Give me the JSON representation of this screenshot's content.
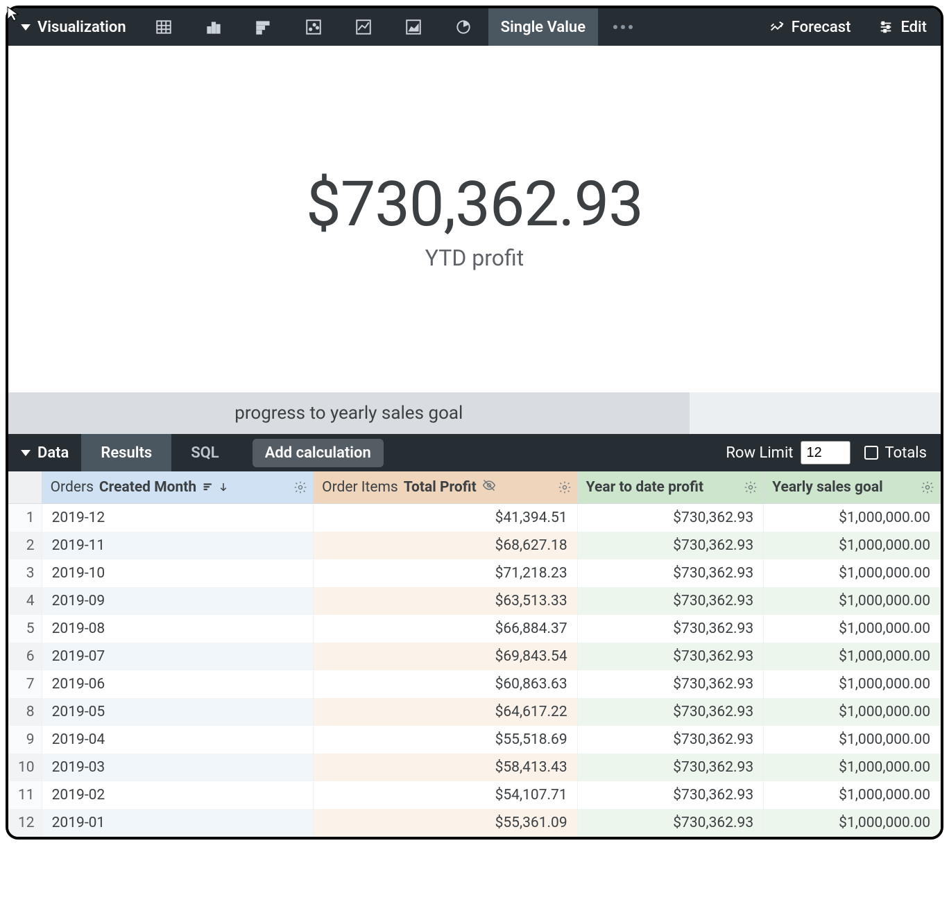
{
  "toolbar": {
    "title": "Visualization",
    "icons": [
      "table",
      "bar",
      "bar-h",
      "scatter",
      "line",
      "area",
      "pie"
    ],
    "single_value_label": "Single Value",
    "forecast_label": "Forecast",
    "edit_label": "Edit"
  },
  "single_value": {
    "value": "$730,362.93",
    "label": "YTD profit",
    "value_fontsize": 90,
    "label_fontsize": 32,
    "text_color": "#3c4043"
  },
  "progress": {
    "label": "progress to yearly sales goal",
    "percent": 73.036,
    "fill_color": "#d9dce0",
    "rest_color": "#eceff1"
  },
  "data_bar": {
    "title": "Data",
    "tabs": {
      "results": "Results",
      "sql": "SQL"
    },
    "add_calc": "Add calculation",
    "row_limit_label": "Row Limit",
    "row_limit_value": "12",
    "totals_label": "Totals",
    "totals_checked": false
  },
  "table": {
    "columns": [
      {
        "group": "Orders",
        "label": "Created Month",
        "kind": "dim",
        "sorted_desc": true
      },
      {
        "group": "Order Items",
        "label": "Total Profit",
        "kind": "meas",
        "hidden": true
      },
      {
        "label": "Year to date profit",
        "kind": "calc"
      },
      {
        "label": "Yearly sales goal",
        "kind": "calc"
      }
    ],
    "header_colors": {
      "dim": "#cfe1f2",
      "meas": "#f0d5bd",
      "calc": "#cce5cc",
      "rownum": "#eef0f2"
    },
    "stripe_colors": {
      "dim_even": "#f1f6fb",
      "meas_even": "#fbf2ea",
      "calc_even": "#edf6ed",
      "odd": "#ffffff"
    },
    "rows": [
      {
        "n": 1,
        "month": "2019-12",
        "profit": "$41,394.51",
        "ytd": "$730,362.93",
        "goal": "$1,000,000.00"
      },
      {
        "n": 2,
        "month": "2019-11",
        "profit": "$68,627.18",
        "ytd": "$730,362.93",
        "goal": "$1,000,000.00"
      },
      {
        "n": 3,
        "month": "2019-10",
        "profit": "$71,218.23",
        "ytd": "$730,362.93",
        "goal": "$1,000,000.00"
      },
      {
        "n": 4,
        "month": "2019-09",
        "profit": "$63,513.33",
        "ytd": "$730,362.93",
        "goal": "$1,000,000.00"
      },
      {
        "n": 5,
        "month": "2019-08",
        "profit": "$66,884.37",
        "ytd": "$730,362.93",
        "goal": "$1,000,000.00"
      },
      {
        "n": 6,
        "month": "2019-07",
        "profit": "$69,843.54",
        "ytd": "$730,362.93",
        "goal": "$1,000,000.00"
      },
      {
        "n": 7,
        "month": "2019-06",
        "profit": "$60,863.63",
        "ytd": "$730,362.93",
        "goal": "$1,000,000.00"
      },
      {
        "n": 8,
        "month": "2019-05",
        "profit": "$64,617.22",
        "ytd": "$730,362.93",
        "goal": "$1,000,000.00"
      },
      {
        "n": 9,
        "month": "2019-04",
        "profit": "$55,518.69",
        "ytd": "$730,362.93",
        "goal": "$1,000,000.00"
      },
      {
        "n": 10,
        "month": "2019-03",
        "profit": "$58,413.43",
        "ytd": "$730,362.93",
        "goal": "$1,000,000.00"
      },
      {
        "n": 11,
        "month": "2019-02",
        "profit": "$54,107.71",
        "ytd": "$730,362.93",
        "goal": "$1,000,000.00"
      },
      {
        "n": 12,
        "month": "2019-01",
        "profit": "$55,361.09",
        "ytd": "$730,362.93",
        "goal": "$1,000,000.00"
      }
    ]
  },
  "palette": {
    "bar_bg": "#262d33",
    "bar_active": "#4a5660",
    "text_muted": "#bfc7cd"
  }
}
